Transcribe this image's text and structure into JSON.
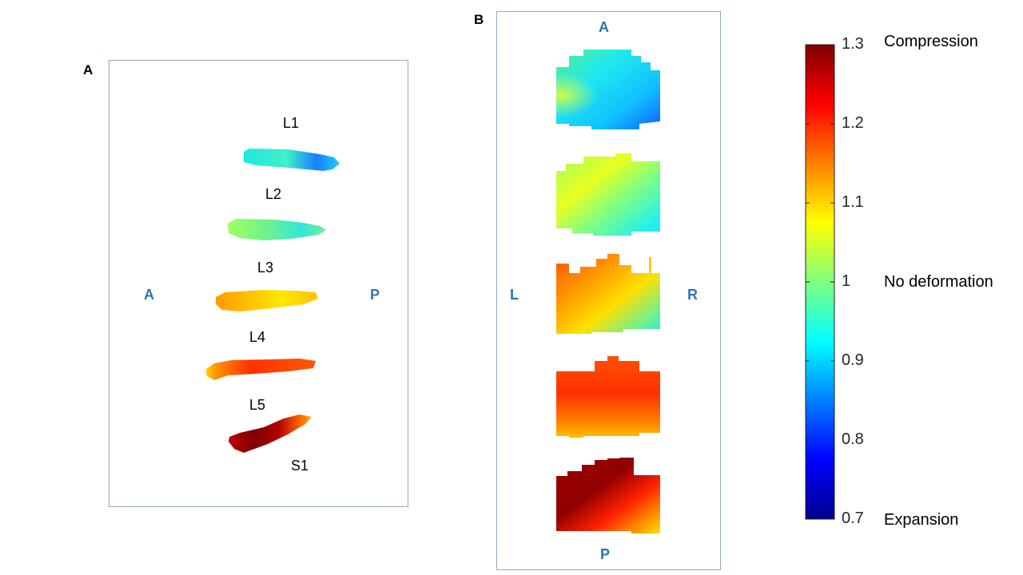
{
  "panel_a": {
    "letter": "A",
    "discs": [
      "L1",
      "L2",
      "L3",
      "L4",
      "L5",
      "S1"
    ],
    "orientation": {
      "left": "A",
      "right": "P"
    }
  },
  "panel_b": {
    "letter": "B",
    "orientation": {
      "top": "A",
      "bottom": "P",
      "left": "L",
      "right": "R"
    }
  },
  "colorbar": {
    "ticks": [
      "1.3",
      "1.2",
      "1.1",
      "1",
      "0.9",
      "0.8",
      "0.7"
    ],
    "tick_values": [
      1.3,
      1.2,
      1.1,
      1.0,
      0.9,
      0.8,
      0.7
    ],
    "min": 0.7,
    "max": 1.3,
    "colormap": "jet",
    "annotations": {
      "top": "Compression",
      "middle": "No deformation",
      "bottom": "Expansion"
    }
  }
}
